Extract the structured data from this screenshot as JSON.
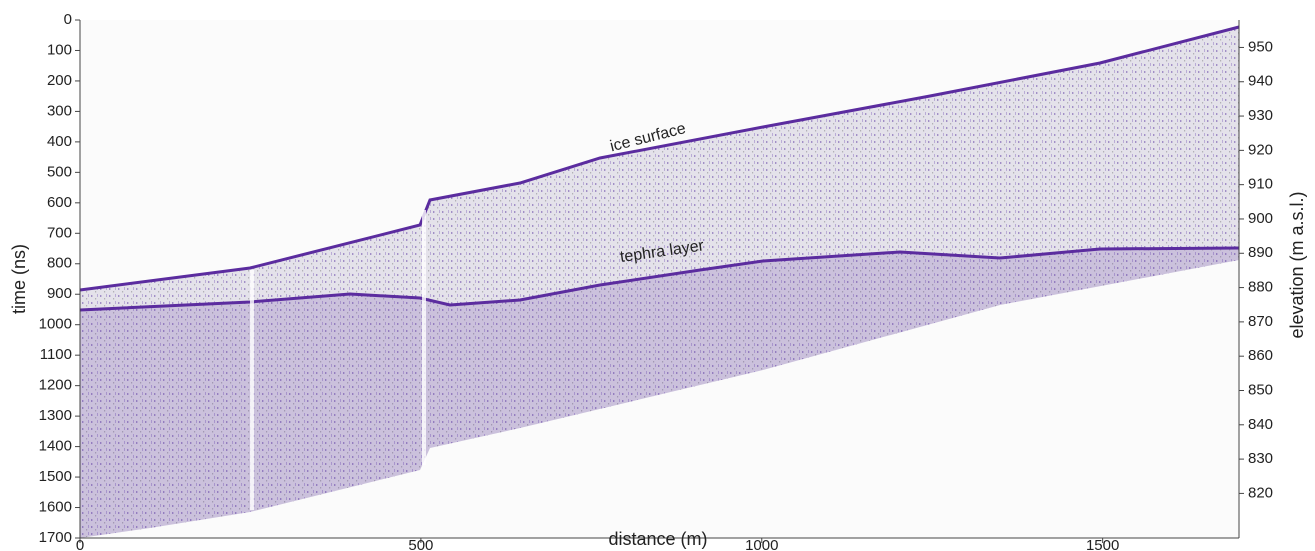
{
  "chart_data": {
    "type": "radargram",
    "xlabel": "distance (m)",
    "ylabel": "time (ns)",
    "y2label": "elevation (m a.s.l.)",
    "xlim": [
      0,
      1700
    ],
    "xticks": [
      0,
      500,
      1000,
      1500
    ],
    "ylim": [
      1700,
      0
    ],
    "yticks": [
      0,
      100,
      200,
      300,
      400,
      500,
      600,
      700,
      800,
      900,
      1000,
      1100,
      1200,
      1300,
      1400,
      1500,
      1600,
      1700
    ],
    "y2lim": [
      807,
      958
    ],
    "y2ticks": [
      820,
      830,
      840,
      850,
      860,
      870,
      880,
      890,
      900,
      910,
      920,
      930,
      940,
      950
    ],
    "annotations": [
      "ice surface",
      "tephra layer"
    ],
    "color": "#5b2c9f"
  }
}
